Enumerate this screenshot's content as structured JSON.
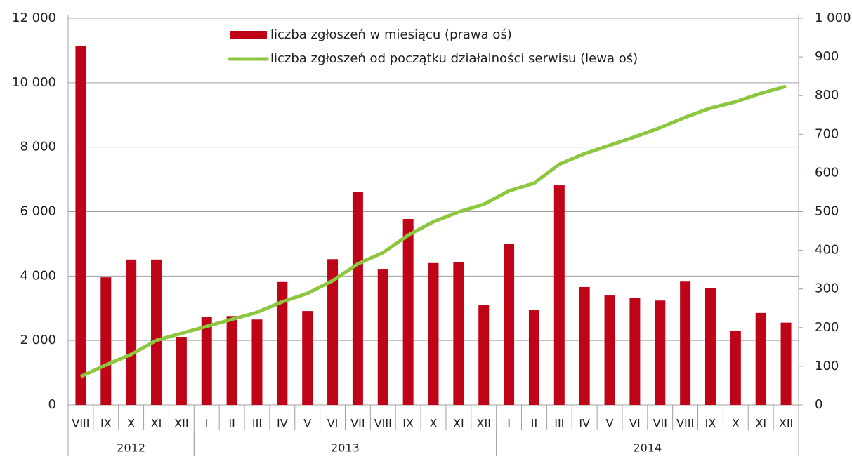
{
  "chart_data": {
    "type": "bar_line",
    "categories": [
      "VIII",
      "IX",
      "X",
      "XI",
      "XII",
      "I",
      "II",
      "III",
      "IV",
      "V",
      "VI",
      "VII",
      "VIII",
      "IX",
      "X",
      "XI",
      "XII",
      "I",
      "II",
      "III",
      "IV",
      "V",
      "VI",
      "VII",
      "VIII",
      "IX",
      "X",
      "XI",
      "XII"
    ],
    "groups": [
      {
        "label": "2012",
        "size": 5
      },
      {
        "label": "2013",
        "size": 12
      },
      {
        "label": "2014",
        "size": 12
      }
    ],
    "series": [
      {
        "name": "liczba zgłoszeń w miesiącu (prawa oś)",
        "type": "bar",
        "axis": "y2",
        "color": "#c00418",
        "values": [
          929,
          330,
          376,
          376,
          176,
          227,
          230,
          221,
          318,
          243,
          377,
          550,
          352,
          481,
          367,
          370,
          258,
          417,
          245,
          568,
          305,
          283,
          276,
          270,
          319,
          303,
          191,
          238,
          213
        ]
      },
      {
        "name": "liczba zgłoszeń od początku działalności serwisu (lewa oś)",
        "type": "line",
        "color": "#8dc63f",
        "values": [
          880,
          1241,
          1568,
          2003,
          2221,
          2439,
          2657,
          2875,
          3200,
          3463,
          3855,
          4377,
          4726,
          5270,
          5684,
          5989,
          6228,
          6642,
          6882,
          7470,
          7797,
          8058,
          8319,
          8603,
          8929,
          9212,
          9408,
          9670,
          9887
        ]
      }
    ],
    "ylim": [
      0,
      12000
    ],
    "yticks": [
      0,
      {
        "value": 2000,
        "label": "2 000"
      },
      {
        "value": 4000,
        "label": "4 000"
      },
      {
        "value": 6000,
        "label": "6 000"
      },
      {
        "value": 8000,
        "label": "8 000"
      },
      {
        "value": 10000,
        "label": "10 000"
      },
      {
        "value": 12000,
        "label": "12 000"
      }
    ],
    "y2lim": [
      0,
      1000
    ],
    "y2ticks": [
      0,
      100,
      200,
      300,
      400,
      500,
      600,
      700,
      800,
      900,
      {
        "value": 1000,
        "label": "1 000"
      }
    ],
    "grid": true,
    "legend": "top"
  }
}
